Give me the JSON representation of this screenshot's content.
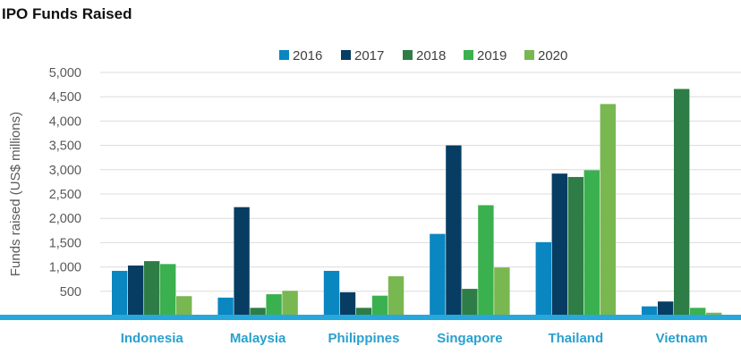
{
  "chart_data": {
    "type": "bar",
    "title": "IPO Funds Raised",
    "ylabel": "Funds raised (US$ millions)",
    "xlabel": "",
    "categories": [
      "Indonesia",
      "Malaysia",
      "Philippines",
      "Singapore",
      "Thailand",
      "Vietnam"
    ],
    "series": [
      {
        "name": "2016",
        "color": "#0a86c0",
        "values": [
          920,
          370,
          920,
          1680,
          1510,
          190
        ]
      },
      {
        "name": "2017",
        "color": "#073d62",
        "values": [
          1030,
          2230,
          480,
          3500,
          2920,
          290
        ]
      },
      {
        "name": "2018",
        "color": "#2e7d46",
        "values": [
          1120,
          160,
          160,
          550,
          2850,
          4660
        ]
      },
      {
        "name": "2019",
        "color": "#3bb04e",
        "values": [
          1060,
          440,
          410,
          2270,
          2990,
          160
        ]
      },
      {
        "name": "2020",
        "color": "#79b750",
        "values": [
          400,
          510,
          810,
          990,
          4350,
          60
        ]
      }
    ],
    "ylim": [
      0,
      5000
    ],
    "yticks": [
      500,
      1000,
      1500,
      2000,
      2500,
      3000,
      3500,
      4000,
      4500,
      5000
    ],
    "ytick_labels": [
      "500",
      "1,000",
      "1,500",
      "2,000",
      "2,500",
      "3,000",
      "3,500",
      "4,000",
      "4,500",
      "5,000"
    ],
    "grid": true,
    "legend_position": "top-center",
    "axis_color": "#27a8dc"
  }
}
